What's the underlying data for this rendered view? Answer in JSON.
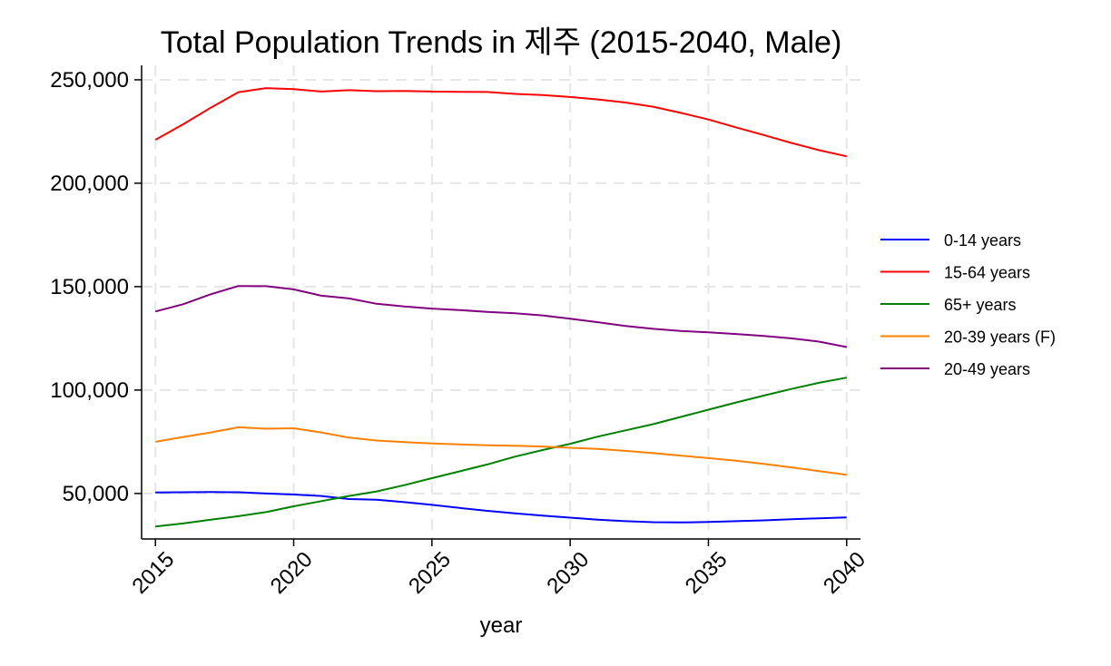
{
  "chart_data": {
    "type": "line",
    "title": "Total Population Trends in 제주 (2015-2040, Male)",
    "xlabel": "year",
    "ylabel": "",
    "x": [
      2015,
      2016,
      2017,
      2018,
      2019,
      2020,
      2021,
      2022,
      2023,
      2024,
      2025,
      2026,
      2027,
      2028,
      2029,
      2030,
      2031,
      2032,
      2033,
      2034,
      2035,
      2036,
      2037,
      2038,
      2039,
      2040
    ],
    "xlim": [
      2014.5,
      2040.5
    ],
    "ylim": [
      28000,
      257000
    ],
    "x_ticks": [
      2015,
      2020,
      2025,
      2030,
      2035,
      2040
    ],
    "x_tick_labels": [
      "2015",
      "2020",
      "2025",
      "2030",
      "2035",
      "2040"
    ],
    "y_ticks": [
      50000,
      100000,
      150000,
      200000,
      250000
    ],
    "y_tick_labels": [
      "50,000",
      "100,000",
      "150,000",
      "200,000",
      "250,000"
    ],
    "grid": true,
    "legend_position": "right",
    "series": [
      {
        "name": "0-14 years",
        "color": "#0000ff",
        "values": [
          50500,
          50600,
          50700,
          50600,
          50000,
          49500,
          48800,
          47300,
          47000,
          45800,
          44500,
          43000,
          41600,
          40400,
          39300,
          38300,
          37300,
          36600,
          36100,
          36000,
          36200,
          36600,
          37000,
          37500,
          38000,
          38400
        ]
      },
      {
        "name": "15-64 years",
        "color": "#ff0000",
        "values": [
          221000,
          228500,
          236500,
          244000,
          246000,
          245500,
          244300,
          245000,
          244500,
          244600,
          244300,
          244200,
          244100,
          243200,
          242600,
          241700,
          240500,
          239000,
          237000,
          234000,
          230800,
          227000,
          223300,
          219500,
          216000,
          213000
        ]
      },
      {
        "name": "65+ years",
        "color": "#008000",
        "values": [
          34000,
          35500,
          37300,
          39000,
          41000,
          43800,
          46300,
          48800,
          51000,
          54000,
          57400,
          60700,
          64000,
          67800,
          71000,
          74000,
          77500,
          80500,
          83500,
          87000,
          90500,
          94000,
          97300,
          100500,
          103500,
          106000
        ]
      },
      {
        "name": "20-39 years (F)",
        "color": "#ff8000",
        "values": [
          75000,
          77300,
          79500,
          82000,
          81300,
          81500,
          79500,
          77000,
          75600,
          74800,
          74200,
          73700,
          73300,
          73100,
          72700,
          72100,
          71500,
          70600,
          69500,
          68300,
          67100,
          65800,
          64300,
          62600,
          60800,
          59000
        ]
      },
      {
        "name": "20-49 years",
        "color": "#800080",
        "values": [
          138000,
          141500,
          146300,
          150300,
          150200,
          148700,
          145600,
          144300,
          141700,
          140400,
          139400,
          138700,
          137800,
          137100,
          136100,
          134500,
          132800,
          131000,
          129600,
          128600,
          127900,
          127100,
          126200,
          125000,
          123400,
          120800
        ]
      }
    ]
  }
}
